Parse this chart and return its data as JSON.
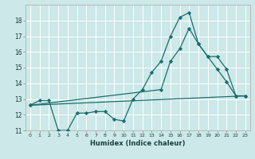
{
  "xlabel": "Humidex (Indice chaleur)",
  "bg_color": "#cce8e8",
  "grid_color": "#ffffff",
  "line_color": "#1a6e6e",
  "xlim": [
    -0.5,
    23.5
  ],
  "ylim": [
    11,
    19
  ],
  "xticks": [
    0,
    1,
    2,
    3,
    4,
    5,
    6,
    7,
    8,
    9,
    10,
    11,
    12,
    13,
    14,
    15,
    16,
    17,
    18,
    19,
    20,
    21,
    22,
    23
  ],
  "yticks": [
    11,
    12,
    13,
    14,
    15,
    16,
    17,
    18
  ],
  "line1_x": [
    0,
    1,
    2,
    3,
    4,
    5,
    6,
    7,
    8,
    9,
    10,
    11,
    12,
    13,
    14,
    15,
    16,
    17,
    18,
    19,
    20,
    21,
    22,
    23
  ],
  "line1_y": [
    12.6,
    12.9,
    12.9,
    11.0,
    11.0,
    12.1,
    12.1,
    12.2,
    12.2,
    11.7,
    11.6,
    13.0,
    13.6,
    14.7,
    15.4,
    17.0,
    18.2,
    18.5,
    16.5,
    15.7,
    14.9,
    14.1,
    13.2,
    13.2
  ],
  "line2_x": [
    0,
    23
  ],
  "line2_y": [
    12.6,
    13.2
  ],
  "line3_x": [
    0,
    14,
    15,
    16,
    17,
    18,
    19,
    20,
    21,
    22,
    23
  ],
  "line3_y": [
    12.6,
    13.6,
    15.4,
    16.2,
    17.5,
    16.5,
    15.7,
    15.7,
    14.9,
    13.2,
    13.2
  ]
}
